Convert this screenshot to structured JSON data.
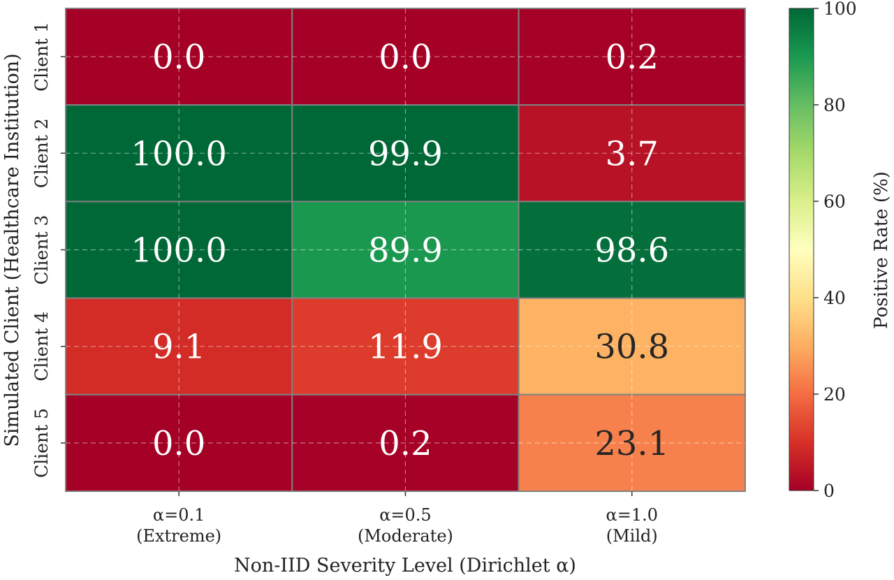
{
  "chart_data": {
    "type": "heatmap",
    "title": "",
    "xlabel": "Non-IID Severity Level (Dirichlet α)",
    "ylabel": "Simulated Client (Healthcare Institution)",
    "x_categories": [
      {
        "line1": "α=0.1",
        "line2": "(Extreme)"
      },
      {
        "line1": "α=0.5",
        "line2": "(Moderate)"
      },
      {
        "line1": "α=1.0",
        "line2": "(Mild)"
      }
    ],
    "y_categories": [
      "Client 1",
      "Client 2",
      "Client 3",
      "Client 4",
      "Client 5"
    ],
    "values": [
      [
        0.0,
        0.0,
        0.2
      ],
      [
        100.0,
        99.9,
        3.7
      ],
      [
        100.0,
        89.9,
        98.6
      ],
      [
        9.1,
        11.9,
        30.8
      ],
      [
        0.0,
        0.2,
        23.1
      ]
    ],
    "colorbar": {
      "label": "Positive Rate (%)",
      "range": [
        0,
        100
      ],
      "ticks": [
        0,
        20,
        40,
        60,
        80,
        100
      ],
      "colormap": "RdYlGn",
      "stops": [
        "#a50026",
        "#d73027",
        "#f46d43",
        "#fdae61",
        "#fee08b",
        "#ffffbf",
        "#d9ef8b",
        "#a6d96a",
        "#66bd63",
        "#1a9850",
        "#006837"
      ]
    },
    "grid": true,
    "annotations_format": "0.1f"
  }
}
